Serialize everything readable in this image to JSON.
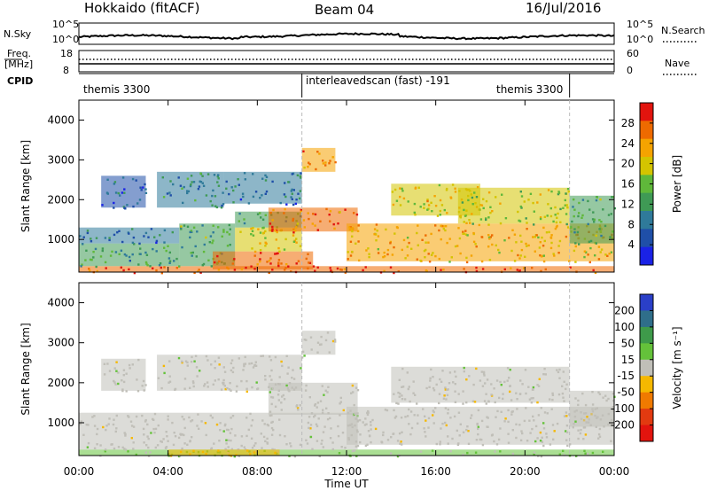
{
  "header": {
    "title": "Hokkaido (fitACF)",
    "beam": "Beam 04",
    "date": "16/Jul/2016"
  },
  "top_panels": {
    "nsky_label": "N.Sky",
    "nsky_ticks": [
      "10^5",
      "10^0"
    ],
    "nsearch_label": "N.Search",
    "nsearch_ticks": [
      "10^5",
      "10^0"
    ],
    "freq_label_1": "Freq.",
    "freq_label_2": "[MHz]",
    "freq_ticks": [
      "18",
      "8"
    ],
    "nave_label": "Nave",
    "nave_ticks": [
      "60",
      "0"
    ],
    "cpid_label": "CPID",
    "cpid_segments": [
      {
        "name": "themis 3300",
        "start_h": 0,
        "end_h": 10
      },
      {
        "name": "interleavedscan (fast) -191",
        "start_h": 10,
        "end_h": 22
      },
      {
        "name": "themis 3300",
        "start_h": 22,
        "end_h": 24
      }
    ]
  },
  "chart_data": [
    {
      "type": "heatmap",
      "title": "",
      "parameter": "Power",
      "xlabel": "Time UT",
      "ylabel": "Slant Range [km]",
      "colorbar_label": "Power [dB]",
      "xlim": [
        0,
        24
      ],
      "ylim": [
        180,
        4500
      ],
      "x_ticks": [
        "00:00",
        "04:00",
        "08:00",
        "12:00",
        "16:00",
        "20:00",
        "00:00"
      ],
      "y_ticks": [
        1000,
        2000,
        3000,
        4000
      ],
      "colorbar_ticks": [
        4,
        8,
        12,
        16,
        20,
        24,
        28
      ],
      "colorbar_range": [
        0,
        32
      ],
      "colorbar_colors": [
        "#1a22e6",
        "#1f4fa8",
        "#2f7a9a",
        "#3f9a55",
        "#5fb83a",
        "#d4c400",
        "#f5a300",
        "#ee6a00",
        "#e2140e"
      ],
      "regions": [
        {
          "t0": 0.0,
          "t1": 24.0,
          "r0": 180,
          "r1": 330,
          "value": 28
        },
        {
          "t0": 0.0,
          "t1": 4.5,
          "r0": 330,
          "r1": 900,
          "value": 12
        },
        {
          "t0": 0.0,
          "t1": 4.5,
          "r0": 900,
          "r1": 1300,
          "value": 8
        },
        {
          "t0": 4.5,
          "t1": 7.0,
          "r0": 330,
          "r1": 1400,
          "value": 14
        },
        {
          "t0": 6.0,
          "t1": 10.5,
          "r0": 250,
          "r1": 700,
          "value": 28
        },
        {
          "t0": 7.0,
          "t1": 10.0,
          "r0": 700,
          "r1": 1300,
          "value": 20
        },
        {
          "t0": 7.0,
          "t1": 10.0,
          "r0": 1300,
          "r1": 1700,
          "value": 14
        },
        {
          "t0": 8.5,
          "t1": 12.5,
          "r0": 1200,
          "r1": 1800,
          "value": 26
        },
        {
          "t0": 12.0,
          "t1": 24.0,
          "r0": 450,
          "r1": 1400,
          "value": 22
        },
        {
          "t0": 14.0,
          "t1": 18.0,
          "r0": 1600,
          "r1": 2400,
          "value": 20
        },
        {
          "t0": 17.0,
          "t1": 22.0,
          "r0": 1400,
          "r1": 2300,
          "value": 18
        },
        {
          "t0": 1.0,
          "t1": 3.0,
          "r0": 1800,
          "r1": 2600,
          "value": 6
        },
        {
          "t0": 3.5,
          "t1": 6.5,
          "r0": 1800,
          "r1": 2700,
          "value": 10
        },
        {
          "t0": 6.5,
          "t1": 10.0,
          "r0": 1900,
          "r1": 2700,
          "value": 8
        },
        {
          "t0": 10.0,
          "t1": 11.5,
          "r0": 2700,
          "r1": 3300,
          "value": 24
        },
        {
          "t0": 22.0,
          "t1": 24.0,
          "r0": 900,
          "r1": 2100,
          "value": 14
        }
      ]
    },
    {
      "type": "heatmap",
      "title": "",
      "parameter": "Velocity",
      "xlabel": "Time UT",
      "ylabel": "Slant Range [km]",
      "colorbar_label": "Velocity [m s⁻¹]",
      "xlim": [
        0,
        24
      ],
      "ylim": [
        180,
        4500
      ],
      "x_ticks": [
        "00:00",
        "04:00",
        "08:00",
        "12:00",
        "16:00",
        "20:00",
        "00:00"
      ],
      "y_ticks": [
        1000,
        2000,
        3000,
        4000
      ],
      "colorbar_ticks": [
        200,
        100,
        50,
        15,
        -15,
        -50,
        -100,
        -200
      ],
      "colorbar_range": [
        -250,
        250
      ],
      "colorbar_colors": [
        "#2a3fc8",
        "#2f6e8a",
        "#3e9a4a",
        "#64c23a",
        "#c0bfb8",
        "#f5b800",
        "#f07a00",
        "#e23a10",
        "#e2140e"
      ],
      "regions": [
        {
          "t0": 0.0,
          "t1": 24.0,
          "r0": 180,
          "r1": 330,
          "value": 30
        },
        {
          "t0": 0.0,
          "t1": 12.5,
          "r0": 330,
          "r1": 1250,
          "value": 0
        },
        {
          "t0": 8.5,
          "t1": 12.5,
          "r0": 1200,
          "r1": 2000,
          "value": 0
        },
        {
          "t0": 12.0,
          "t1": 24.0,
          "r0": 450,
          "r1": 1400,
          "value": 0
        },
        {
          "t0": 14.0,
          "t1": 22.0,
          "r0": 1500,
          "r1": 2400,
          "value": 0
        },
        {
          "t0": 3.5,
          "t1": 10.0,
          "r0": 1800,
          "r1": 2700,
          "value": 0
        },
        {
          "t0": 1.0,
          "t1": 3.0,
          "r0": 1800,
          "r1": 2600,
          "value": 0
        },
        {
          "t0": 10.0,
          "t1": 11.5,
          "r0": 2700,
          "r1": 3300,
          "value": 0
        },
        {
          "t0": 22.0,
          "t1": 24.0,
          "r0": 900,
          "r1": 1800,
          "value": 0
        },
        {
          "t0": 4.0,
          "t1": 9.0,
          "r0": 180,
          "r1": 330,
          "value": -60
        }
      ]
    }
  ]
}
